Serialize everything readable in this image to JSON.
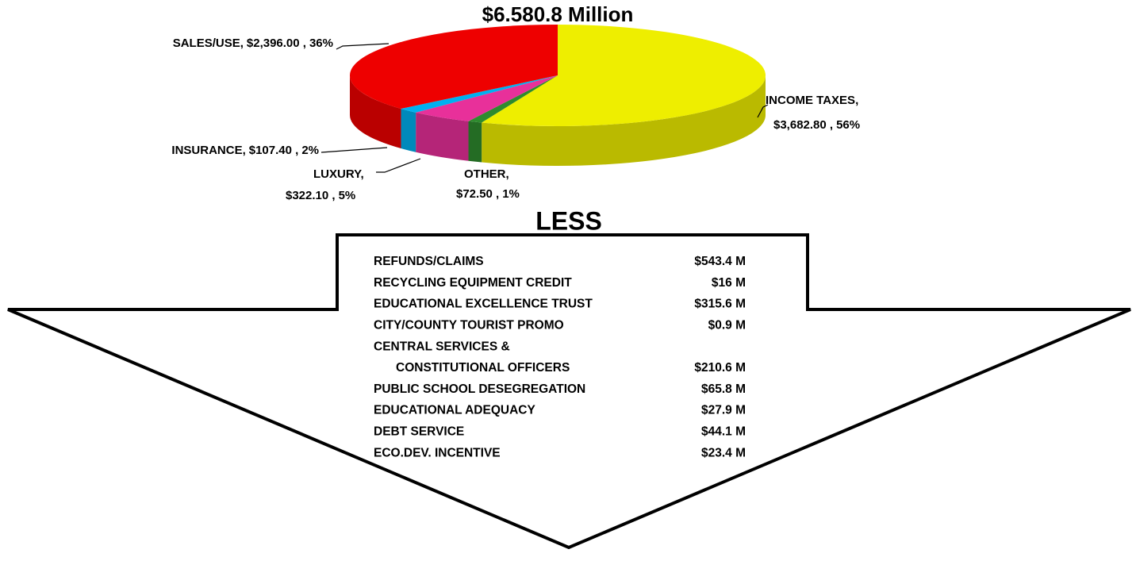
{
  "chart_data": {
    "type": "pie3d",
    "title": "$6.580.8 Million",
    "categories": [
      "INCOME TAXES,",
      "OTHER,",
      "LUXURY,",
      "INSURANCE,",
      "SALES/USE,"
    ],
    "values": [
      3682.8,
      72.5,
      322.1,
      107.4,
      2396.0
    ],
    "value_labels": [
      "$3,682.80 ,",
      "$72.50 ,",
      "$322.10 ,",
      "$107.40 ,",
      "$2,396.00 ,"
    ],
    "percents": [
      56,
      1,
      5,
      2,
      36
    ],
    "percent_labels": [
      "56%",
      "1%",
      "5%",
      "2%",
      "36%"
    ],
    "colors": [
      "#eeee00",
      "#2e8b2e",
      "#e8309a",
      "#00b0f0",
      "#ee0000"
    ]
  },
  "deductions": {
    "title": "LESS",
    "rows": [
      {
        "label": "REFUNDS/CLAIMS",
        "amount": "$543.4 M"
      },
      {
        "label": "RECYCLING EQUIPMENT CREDIT",
        "amount": "$16 M"
      },
      {
        "label": "EDUCATIONAL EXCELLENCE TRUST",
        "amount": "$315.6 M"
      },
      {
        "label": "CITY/COUNTY TOURIST PROMO",
        "amount": "$0.9 M"
      },
      {
        "label": "CENTRAL SERVICES &"
      },
      {
        "label": "CONSTITUTIONAL OFFICERS",
        "amount": "$210.6 M"
      },
      {
        "label": "PUBLIC SCHOOL DESEGREGATION",
        "amount": "$65.8 M"
      },
      {
        "label": "EDUCATIONAL ADEQUACY",
        "amount": "$27.9 M"
      },
      {
        "label": "DEBT SERVICE",
        "amount": "$44.1 M"
      },
      {
        "label": "ECO.DEV. INCENTIVE",
        "amount": "$23.4 M"
      }
    ]
  }
}
